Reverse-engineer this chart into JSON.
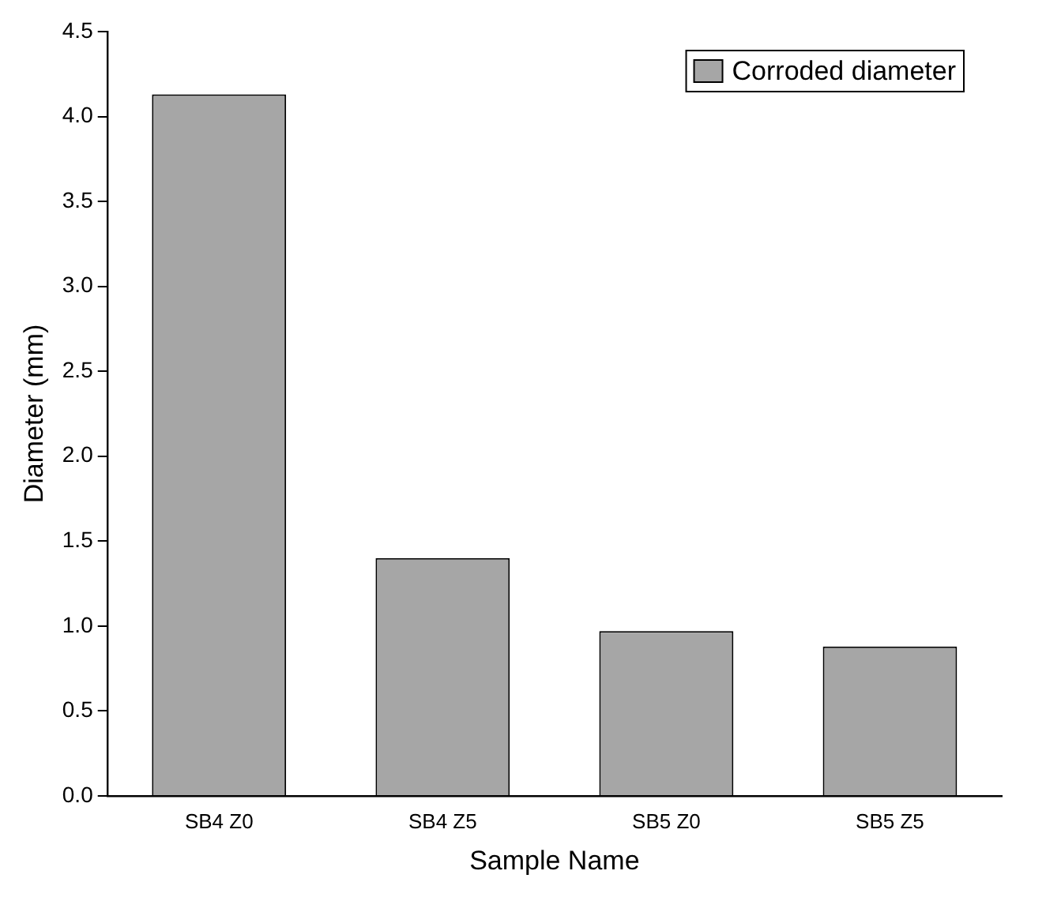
{
  "chart_data": {
    "type": "bar",
    "xlabel": "Sample Name",
    "ylabel": "Diameter (mm)",
    "categories": [
      "SB4 Z0",
      "SB4 Z5",
      "SB5 Z0",
      "SB5 Z5"
    ],
    "series": [
      {
        "name": "Corroded diameter",
        "color": "#a6a6a6",
        "values": [
          4.13,
          1.4,
          0.97,
          0.88
        ]
      }
    ],
    "ylim": [
      0,
      4.5
    ],
    "yticks": [
      {
        "value": 0,
        "label": "0.0"
      },
      {
        "value": 0.5,
        "label": "0.5"
      },
      {
        "value": 1,
        "label": "1.0"
      },
      {
        "value": 1.5,
        "label": "1.5"
      },
      {
        "value": 2,
        "label": "2.0"
      },
      {
        "value": 2.5,
        "label": "2.5"
      },
      {
        "value": 3,
        "label": "3.0"
      },
      {
        "value": 3.5,
        "label": "3.5"
      },
      {
        "value": 4,
        "label": "4.0"
      },
      {
        "value": 4.5,
        "label": "4.5"
      }
    ],
    "grid": false,
    "legend": "top right"
  }
}
